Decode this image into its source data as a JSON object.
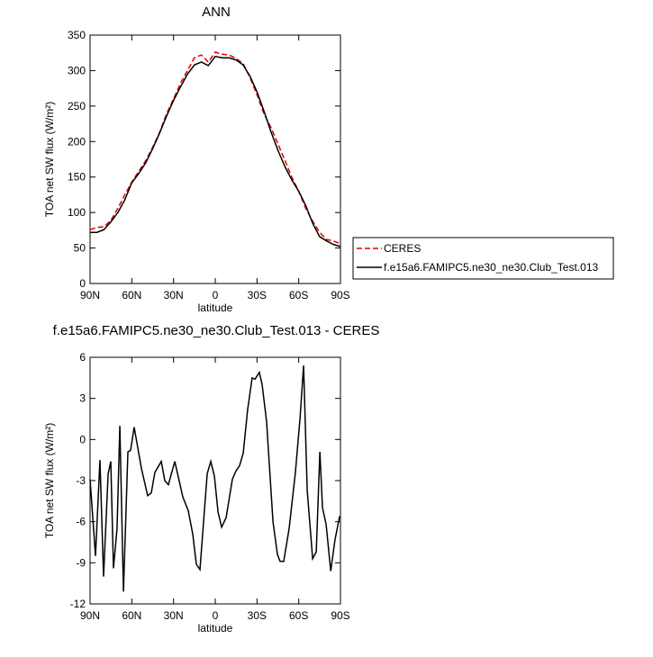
{
  "chart_data": [
    {
      "type": "line",
      "title": "ANN",
      "x": [
        90,
        85,
        80,
        75,
        70,
        65,
        60,
        55,
        50,
        45,
        40,
        35,
        30,
        25,
        20,
        15,
        10,
        5,
        0,
        -5,
        -10,
        -15,
        -20,
        -25,
        -30,
        -35,
        -40,
        -45,
        -50,
        -55,
        -60,
        -65,
        -70,
        -75,
        -80,
        -85,
        -90
      ],
      "series": [
        {
          "name": "CERES",
          "color": "#e00000",
          "dash": true,
          "values": [
            76,
            79,
            80,
            89,
            106,
            125,
            143,
            158,
            173,
            192,
            213,
            239,
            260,
            282,
            300,
            318,
            322,
            312,
            326,
            323,
            322,
            317,
            310,
            290,
            266,
            239,
            220,
            197,
            174,
            150,
            130,
            106,
            88,
            72,
            62,
            60,
            56
          ]
        },
        {
          "name": "f.e15a6.FAMIPC5.ne30_ne30.Club_Test.013",
          "color": "#000000",
          "dash": false,
          "values": [
            72,
            72,
            76,
            87,
            100,
            118,
            142,
            155,
            170,
            190,
            212,
            236,
            258,
            277,
            295,
            308,
            312,
            307,
            320,
            318,
            318,
            315,
            308,
            292,
            270,
            243,
            214,
            188,
            165,
            146,
            130,
            110,
            85,
            66,
            60,
            55,
            52
          ]
        }
      ],
      "xlim": [
        90,
        -90
      ],
      "xticks": [
        {
          "value": 90,
          "label": "90N"
        },
        {
          "value": 60,
          "label": "60N"
        },
        {
          "value": 30,
          "label": "30N"
        },
        0,
        {
          "value": -30,
          "label": "30S"
        },
        {
          "value": -60,
          "label": "60S"
        },
        {
          "value": -90,
          "label": "90S"
        }
      ],
      "ylim": [
        0,
        350
      ],
      "yticks": [
        0,
        50,
        100,
        150,
        200,
        250,
        300,
        350
      ],
      "xlabel": "latitude",
      "ylabel": "TOA net SW flux (W/m²)",
      "legend": "right"
    },
    {
      "type": "line",
      "title": "f.e15a6.FAMIPC5.ne30_ne30.Club_Test.013 - CERES",
      "x": [
        90,
        86.1,
        82.9,
        80.3,
        77,
        75.1,
        73.2,
        70.6,
        68.6,
        66,
        62.8,
        60.9,
        58.3,
        53.1,
        48.6,
        46,
        43.4,
        38.8,
        36.3,
        33.7,
        29.1,
        23.3,
        19.4,
        16.2,
        13.6,
        11,
        5.8,
        3.2,
        0.6,
        -2,
        -4.6,
        -7.8,
        -12.3,
        -14.9,
        -17.5,
        -20.1,
        -23.3,
        -26.5,
        -28.5,
        -31.7,
        -33.7,
        -36.9,
        -41.5,
        -44.7,
        -46.6,
        -49.2,
        -53.1,
        -57.6,
        -60.9,
        -63.5,
        -66.1,
        -70,
        -72.6,
        -75.2,
        -77.1,
        -79.7,
        -83,
        -86.1,
        -89.4
      ],
      "series": [
        {
          "name": "f.e15a6.FAMIPC5.ne30_ne30.Club_Test.013 - CERES",
          "color": "#000000",
          "dash": false,
          "values": [
            -2.9,
            -8.5,
            -1.5,
            -10.0,
            -2.5,
            -1.6,
            -9.4,
            -6.5,
            1.0,
            -11.1,
            -0.9,
            -0.8,
            0.9,
            -2.1,
            -4.1,
            -3.9,
            -2.4,
            -1.6,
            -3.0,
            -3.3,
            -1.6,
            -4.2,
            -5.2,
            -6.9,
            -9.1,
            -9.5,
            -2.5,
            -1.6,
            -2.7,
            -5.3,
            -6.4,
            -5.7,
            -2.9,
            -2.3,
            -1.9,
            -1.0,
            2.2,
            4.5,
            4.4,
            4.9,
            4.0,
            1.3,
            -6.0,
            -8.4,
            -8.9,
            -8.9,
            -6.5,
            -2.4,
            1.5,
            5.4,
            -3.7,
            -8.7,
            -8.2,
            -0.9,
            -5.0,
            -6.2,
            -9.6,
            -7.3,
            -5.6
          ]
        }
      ],
      "xlim": [
        90,
        -90
      ],
      "xticks": [
        {
          "value": 90,
          "label": "90N"
        },
        {
          "value": 60,
          "label": "60N"
        },
        {
          "value": 30,
          "label": "30N"
        },
        0,
        {
          "value": -30,
          "label": "30S"
        },
        {
          "value": -60,
          "label": "60S"
        },
        {
          "value": -90,
          "label": "90S"
        }
      ],
      "ylim": [
        -12,
        6
      ],
      "yticks": [
        -12,
        -9,
        -6,
        -3,
        0,
        3,
        6
      ],
      "xlabel": "latitude",
      "ylabel": "TOA net SW flux (W/m²)"
    }
  ]
}
